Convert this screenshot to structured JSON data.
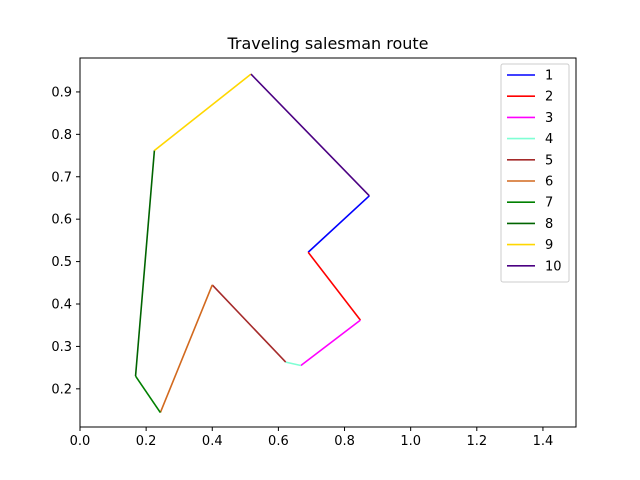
{
  "chart_data": {
    "type": "line",
    "title": "Traveling salesman route",
    "xlabel": "",
    "ylabel": "",
    "xlim": [
      0.0,
      1.5
    ],
    "ylim": [
      0.11,
      0.98
    ],
    "x_ticks": [
      0.0,
      0.2,
      0.4,
      0.6,
      0.8,
      1.0,
      1.2,
      1.4
    ],
    "x_tick_labels": [
      "0.0",
      "0.2",
      "0.4",
      "0.6",
      "0.8",
      "1.0",
      "1.2",
      "1.4"
    ],
    "y_ticks": [
      0.2,
      0.3,
      0.4,
      0.5,
      0.6,
      0.7,
      0.8,
      0.9
    ],
    "y_tick_labels": [
      "0.2",
      "0.3",
      "0.4",
      "0.5",
      "0.6",
      "0.7",
      "0.8",
      "0.9"
    ],
    "grid": false,
    "legend_position": "top-right",
    "series": [
      {
        "name": "1",
        "color": "#0000ff",
        "x": [
          0.875,
          0.69
        ],
        "y": [
          0.655,
          0.522
        ]
      },
      {
        "name": "2",
        "color": "#ff0000",
        "x": [
          0.69,
          0.848
        ],
        "y": [
          0.522,
          0.362
        ]
      },
      {
        "name": "3",
        "color": "#ff00ff",
        "x": [
          0.848,
          0.668
        ],
        "y": [
          0.362,
          0.255
        ]
      },
      {
        "name": "4",
        "color": "#7fffd4",
        "x": [
          0.668,
          0.622
        ],
        "y": [
          0.255,
          0.263
        ]
      },
      {
        "name": "5",
        "color": "#a52a2a",
        "x": [
          0.622,
          0.4
        ],
        "y": [
          0.263,
          0.445
        ]
      },
      {
        "name": "6",
        "color": "#d2691e",
        "x": [
          0.4,
          0.243
        ],
        "y": [
          0.445,
          0.144
        ]
      },
      {
        "name": "7",
        "color": "#008000",
        "x": [
          0.243,
          0.168
        ],
        "y": [
          0.144,
          0.23
        ]
      },
      {
        "name": "8",
        "color": "#006400",
        "x": [
          0.168,
          0.225
        ],
        "y": [
          0.23,
          0.762
        ]
      },
      {
        "name": "9",
        "color": "#ffd700",
        "x": [
          0.225,
          0.517
        ],
        "y": [
          0.762,
          0.942
        ]
      },
      {
        "name": "10",
        "color": "#4b0082",
        "x": [
          0.517,
          0.875
        ],
        "y": [
          0.942,
          0.655
        ]
      }
    ]
  }
}
